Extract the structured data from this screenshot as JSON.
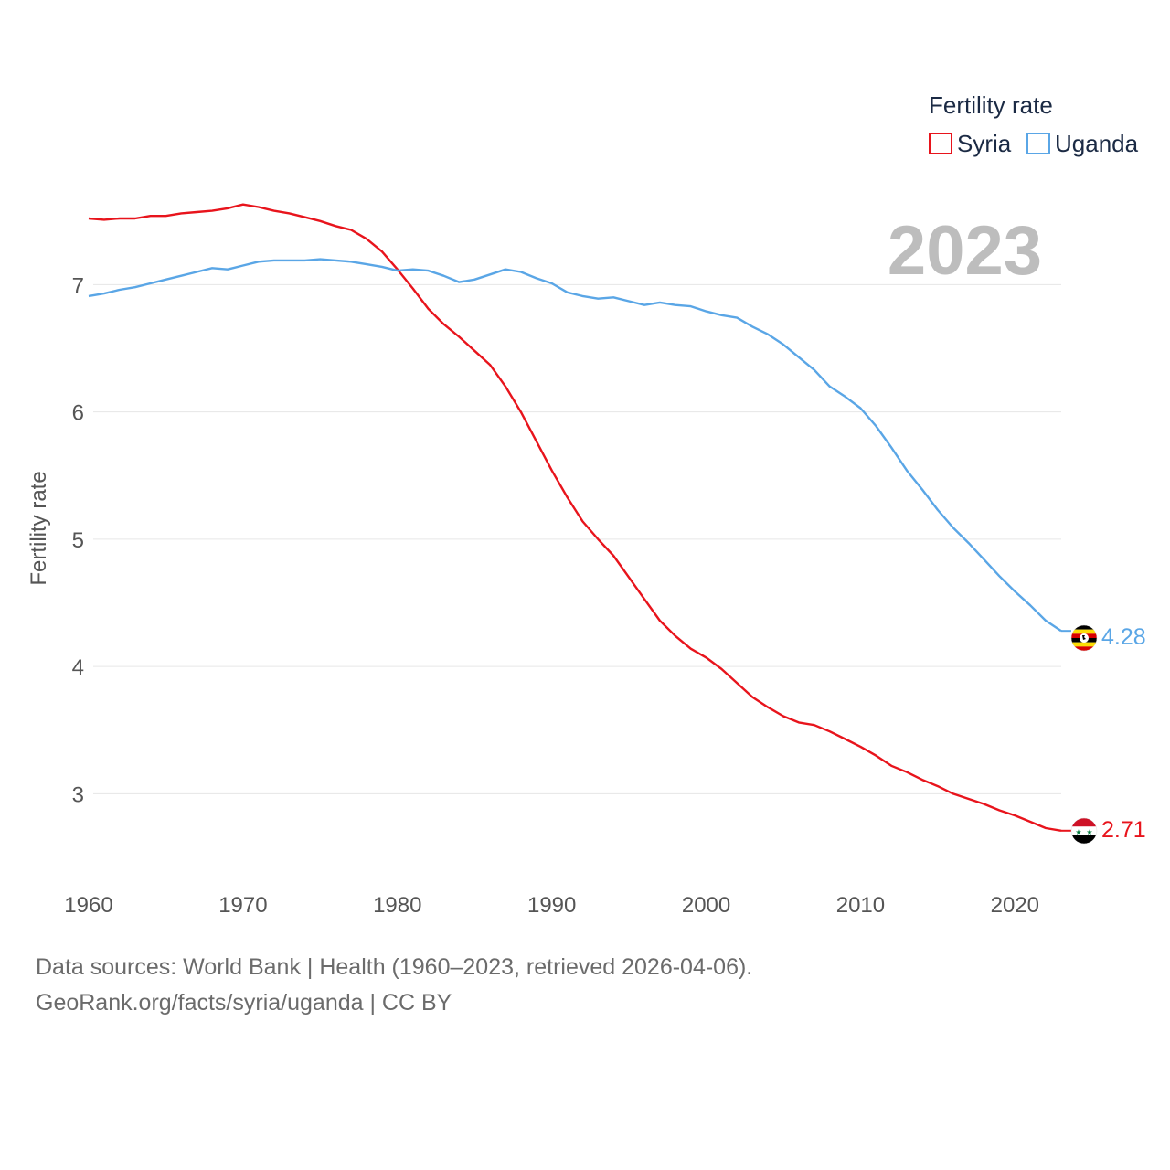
{
  "chart_data": {
    "type": "line",
    "ylabel": "Fertility rate",
    "xlabel": "",
    "legend_title": "Fertility rate",
    "current_year": "2023",
    "xlim": [
      1960,
      2023
    ],
    "ylim": [
      2.45,
      7.8
    ],
    "x_ticks": [
      1960,
      1970,
      1980,
      1990,
      2000,
      2010,
      2020
    ],
    "y_ticks": [
      3,
      4,
      5,
      6,
      7
    ],
    "x": [
      1960,
      1961,
      1962,
      1963,
      1964,
      1965,
      1966,
      1967,
      1968,
      1969,
      1970,
      1971,
      1972,
      1973,
      1974,
      1975,
      1976,
      1977,
      1978,
      1979,
      1980,
      1981,
      1982,
      1983,
      1984,
      1985,
      1986,
      1987,
      1988,
      1989,
      1990,
      1991,
      1992,
      1993,
      1994,
      1995,
      1996,
      1997,
      1998,
      1999,
      2000,
      2001,
      2002,
      2003,
      2004,
      2005,
      2006,
      2007,
      2008,
      2009,
      2010,
      2011,
      2012,
      2013,
      2014,
      2015,
      2016,
      2017,
      2018,
      2019,
      2020,
      2021,
      2022,
      2023
    ],
    "series": [
      {
        "name": "Syria",
        "color": "#e8141c",
        "end_label": "2.71",
        "values": [
          7.52,
          7.51,
          7.52,
          7.52,
          7.54,
          7.54,
          7.56,
          7.57,
          7.58,
          7.6,
          7.63,
          7.61,
          7.58,
          7.56,
          7.53,
          7.5,
          7.46,
          7.43,
          7.36,
          7.26,
          7.12,
          6.97,
          6.81,
          6.69,
          6.59,
          6.48,
          6.37,
          6.2,
          6.0,
          5.77,
          5.54,
          5.33,
          5.14,
          5.0,
          4.87,
          4.7,
          4.53,
          4.36,
          4.24,
          4.14,
          4.07,
          3.98,
          3.87,
          3.76,
          3.68,
          3.61,
          3.56,
          3.54,
          3.49,
          3.43,
          3.37,
          3.3,
          3.22,
          3.17,
          3.11,
          3.06,
          3.0,
          2.96,
          2.92,
          2.87,
          2.83,
          2.78,
          2.73,
          2.71
        ]
      },
      {
        "name": "Uganda",
        "color": "#5aa6e6",
        "end_label": "4.28",
        "values": [
          6.91,
          6.93,
          6.96,
          6.98,
          7.01,
          7.04,
          7.07,
          7.1,
          7.13,
          7.12,
          7.15,
          7.18,
          7.19,
          7.19,
          7.19,
          7.2,
          7.19,
          7.18,
          7.16,
          7.14,
          7.11,
          7.12,
          7.11,
          7.07,
          7.02,
          7.04,
          7.08,
          7.12,
          7.1,
          7.05,
          7.01,
          6.94,
          6.91,
          6.89,
          6.9,
          6.87,
          6.84,
          6.86,
          6.84,
          6.83,
          6.79,
          6.76,
          6.74,
          6.67,
          6.61,
          6.53,
          6.43,
          6.33,
          6.2,
          6.12,
          6.03,
          5.89,
          5.72,
          5.54,
          5.39,
          5.23,
          5.09,
          4.97,
          4.84,
          4.71,
          4.59,
          4.48,
          4.36,
          4.28
        ]
      }
    ]
  },
  "footer": {
    "line1": "Data sources: World Bank | Health (1960–2023, retrieved 2026-04-06).",
    "line2": "GeoRank.org/facts/syria/uganda | CC BY"
  }
}
